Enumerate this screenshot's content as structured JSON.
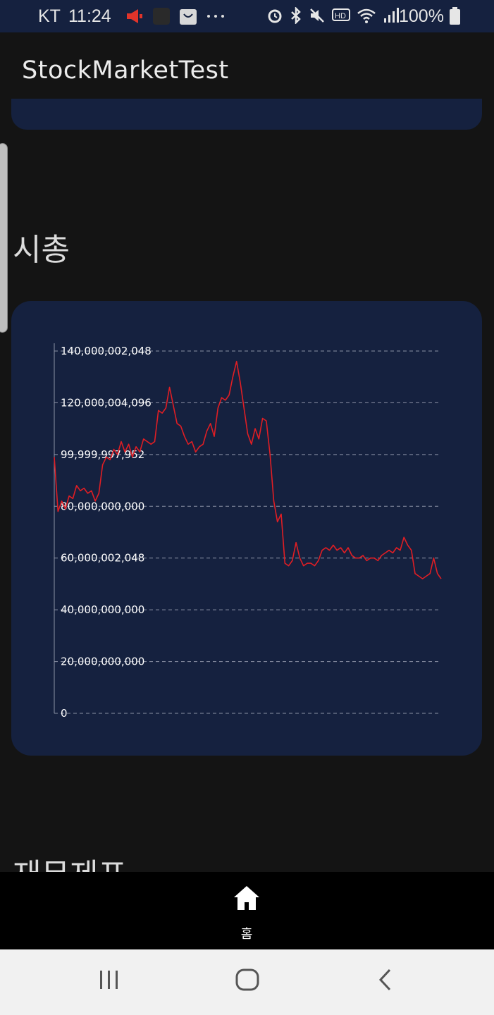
{
  "status_bar": {
    "carrier": "KT",
    "time": "11:24",
    "battery": "100%",
    "icons_left": [
      "megaphone-icon",
      "app-icon",
      "shopping-bag-icon",
      "more-dots-icon"
    ],
    "icons_right": [
      "alarm-icon",
      "bluetooth-icon",
      "mute-icon",
      "hd-icon",
      "wifi-icon",
      "signal-icon"
    ]
  },
  "app_bar": {
    "title": "StockMarketTest"
  },
  "sections": {
    "market_cap_title": "시총",
    "financials_title": "재무제표"
  },
  "chart_data": {
    "type": "line",
    "ylim": [
      0,
      140000002048
    ],
    "yticks": [
      0,
      20000000000,
      40000000000,
      60000002048,
      80000000000,
      99999997952,
      120000004096,
      140000002048
    ],
    "ytick_labels": [
      "0",
      "20,000,000,000",
      "40,000,000,000",
      "60,000,002,048",
      "80,000,000,000",
      "99,999,997,952",
      "120,000,004,096",
      "140,000,002,048"
    ],
    "grid": true,
    "series": [
      {
        "color": "#e01e24",
        "values": [
          99000000000,
          78000000000,
          82000000000,
          79000000000,
          84000000000,
          83000000000,
          88000000000,
          86000000000,
          87000000000,
          85000000000,
          86000000000,
          82000000000,
          85000000000,
          96000000000,
          99000000000,
          98000000000,
          102000000000,
          100000000000,
          105000000000,
          101000000000,
          104000000000,
          99000000000,
          103000000000,
          101000000000,
          106000000000,
          105000000000,
          104000000000,
          105000000000,
          117000000000,
          116000000000,
          118000000000,
          126000000000,
          119000000000,
          112000000000,
          111000000000,
          107000000000,
          104000000000,
          105000000000,
          101000000000,
          103000000000,
          104000000000,
          109000000000,
          112000000000,
          107000000000,
          118000000000,
          122000000000,
          121000000000,
          123000000000,
          130000000000,
          136000000000,
          128000000000,
          118000000000,
          108000000000,
          104000000000,
          110000000000,
          106000000000,
          114000000000,
          113000000000,
          100000000000,
          82000000000,
          74000000000,
          77000000000,
          58000000000,
          57000000000,
          59000000000,
          66000000000,
          60000000000,
          57000000000,
          58000000000,
          58000000000,
          57000000000,
          59000000000,
          63000000000,
          64000000000,
          63000000000,
          65000000000,
          63000000000,
          64000000000,
          62000000000,
          64000000000,
          61000000000,
          60000000000,
          60000000000,
          61000000000,
          59000000000,
          60000000000,
          60000000000,
          59000000000,
          61000000000,
          62000000000,
          63000000000,
          62000000000,
          64000000000,
          63000000000,
          68000000000,
          65000000000,
          63000000000,
          54000000000,
          53000000000,
          52000000000,
          53000000000,
          54000000000,
          60000000000,
          54000000000,
          52000000000
        ]
      }
    ]
  },
  "bottom_nav": {
    "home_label": "홈"
  }
}
